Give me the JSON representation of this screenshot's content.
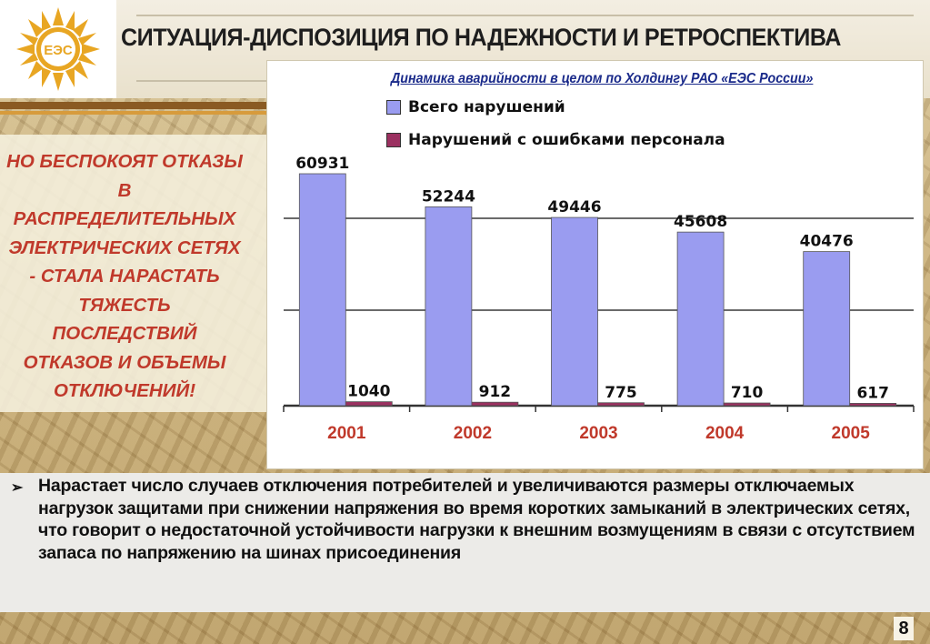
{
  "slide": {
    "title": "СИТУАЦИЯ-ДИСПОЗИЦИЯ ПО НАДЕЖНОСТИ И РЕТРОСПЕКТИВА",
    "left_callout": "НО  БЕСПОКОЯТ ОТКАЗЫ В РАСПРЕДЕЛИТЕЛЬНЫХ ЭЛЕКТРИЧЕСКИХ СЕТЯХ - СТАЛА НАРАСТАТЬ ТЯЖЕСТЬ ПОСЛЕДСТВИЙ ОТКАЗОВ И ОБЪЕМЫ ОТКЛЮЧЕНИЙ!",
    "bullet_marker": "➢",
    "bullet": "Нарастает число случаев отключения потребителей и увеличиваются размеры отключаемых нагрузок защитами при снижении напряжения во время коротких замыканий в электрических сетях, что говорит о недостаточной устойчивости нагрузки к внешним возмущениям в связи с отсутствием запаса по напряжению на шинах присоединения",
    "page_number": "8",
    "logo_text": "ЕЭС",
    "colors": {
      "title_text": "#1e1e1e",
      "callout_text": "#c0392b",
      "subtitle_text": "#1a2a8a"
    }
  },
  "chart_data": {
    "type": "bar",
    "title": "Динамика аварийности в целом по Холдингу РАО «ЕЭС России»",
    "categories": [
      "2001",
      "2002",
      "2003",
      "2004",
      "2005"
    ],
    "series": [
      {
        "name": "Всего нарушений",
        "values": [
          60931,
          52244,
          49446,
          45608,
          40476
        ],
        "color": "#9a9cf0"
      },
      {
        "name": "Нарушений с ошибками персонала",
        "values": [
          1040,
          912,
          775,
          710,
          617
        ],
        "color": "#9b3060"
      }
    ],
    "legend_placement": "top-left",
    "grid": true,
    "category_label_color": "#c0392b"
  }
}
